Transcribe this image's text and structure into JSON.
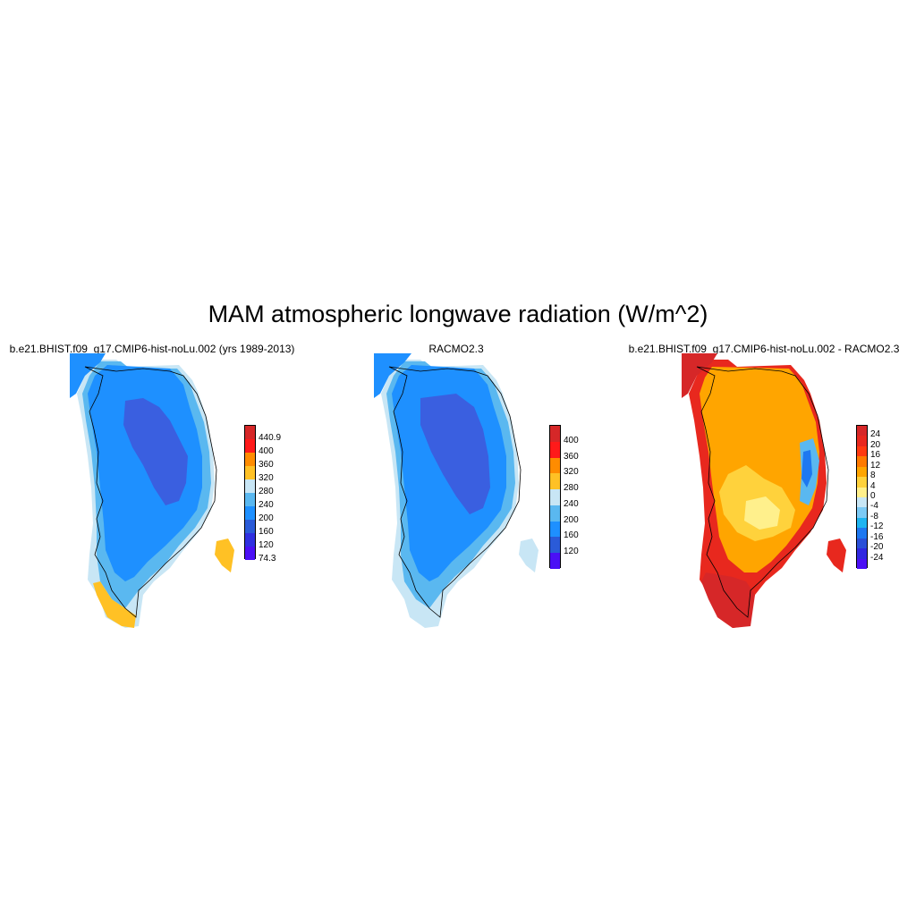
{
  "figure": {
    "title": "MAM atmospheric longwave radiation (W/m^2)"
  },
  "panels": [
    {
      "title": "b.e21.BHIST.f09_g17.CMIP6-hist-noLu.002 (yrs 1989-2013)",
      "colorbar": {
        "labels": [
          "440.9",
          "400",
          "360",
          "320",
          "280",
          "240",
          "200",
          "160",
          "120",
          "74.3"
        ],
        "colors": [
          "#d62728",
          "#ff1a1a",
          "#ff8c00",
          "#ffc125",
          "#c8e6f5",
          "#5ab8f0",
          "#1e90ff",
          "#2a5bd8",
          "#3030e0",
          "#4b10f5"
        ]
      }
    },
    {
      "title": "RACMO2.3",
      "colorbar": {
        "labels": [
          "400",
          "360",
          "320",
          "280",
          "240",
          "200",
          "160",
          "120"
        ],
        "colors": [
          "#d62728",
          "#ff1a1a",
          "#ff8c00",
          "#ffc125",
          "#c8e6f5",
          "#5ab8f0",
          "#1e90ff",
          "#2a5bd8",
          "#4b10f5"
        ]
      }
    },
    {
      "title": "b.e21.BHIST.f09_g17.CMIP6-hist-noLu.002 - RACMO2.3",
      "colorbar": {
        "labels": [
          "24",
          "20",
          "16",
          "12",
          "8",
          "4",
          "0",
          "-4",
          "-8",
          "-12",
          "-16",
          "-20",
          "-24"
        ],
        "colors": [
          "#d62728",
          "#e8281e",
          "#ff3a10",
          "#ff7a00",
          "#ffa500",
          "#ffd23c",
          "#fff08c",
          "#c8e6f5",
          "#7ccaf5",
          "#1eb4f0",
          "#1e78f0",
          "#2a50d8",
          "#3028e0",
          "#4b10f5"
        ]
      }
    }
  ]
}
